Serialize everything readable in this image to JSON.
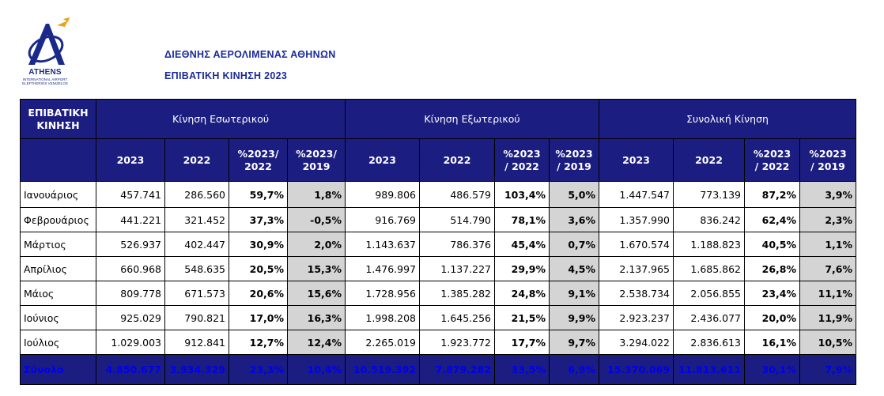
{
  "logo": {
    "brand": "ATHENS",
    "sub_line1": "INTERNATIONAL AIRPORT",
    "sub_line2": "ELEFTHERIOS VENIZELOS"
  },
  "header": {
    "title1": "ΔΙΕΘΝΗΣ ΑΕΡΟΛΙΜΕΝΑΣ ΑΘΗΝΩΝ",
    "title2": "ΕΠΙΒΑΤΙΚΗ ΚΙΝΗΣΗ 2023"
  },
  "table": {
    "corner_label_1": "ΕΠΙΒΑΤΙΚΗ",
    "corner_label_2": "ΚΙΝΗΣΗ",
    "groups": [
      "Κίνηση Εσωτερικού",
      "Κίνηση Εξωτερικού",
      "Συνολική Κίνηση"
    ],
    "subheaders": [
      [
        "2023",
        "",
        "2022",
        "",
        "%2023/",
        "2022",
        "%2023/",
        "2019"
      ],
      [
        "2023",
        "",
        "2022",
        "",
        "%2023",
        "/ 2022",
        "%2023",
        "/ 2019"
      ],
      [
        "2023",
        "",
        "2022",
        "",
        "%2023",
        "/ 2022",
        "%2023",
        "/ 2019"
      ]
    ],
    "rows": [
      {
        "month": "Ιανουάριος",
        "cells": [
          "457.741",
          "286.560",
          "59,7%",
          "1,8%",
          "989.806",
          "486.579",
          "103,4%",
          "5,0%",
          "1.447.547",
          "773.139",
          "87,2%",
          "3,9%"
        ]
      },
      {
        "month": "Φεβρουάριος",
        "cells": [
          "441.221",
          "321.452",
          "37,3%",
          "-0,5%",
          "916.769",
          "514.790",
          "78,1%",
          "3,6%",
          "1.357.990",
          "836.242",
          "62,4%",
          "2,3%"
        ]
      },
      {
        "month": "Μάρτιος",
        "cells": [
          "526.937",
          "402.447",
          "30,9%",
          "2,0%",
          "1.143.637",
          "786.376",
          "45,4%",
          "0,7%",
          "1.670.574",
          "1.188.823",
          "40,5%",
          "1,1%"
        ]
      },
      {
        "month": "Απρίλιος",
        "cells": [
          "660.968",
          "548.635",
          "20,5%",
          "15,3%",
          "1.476.997",
          "1.137.227",
          "29,9%",
          "4,5%",
          "2.137.965",
          "1.685.862",
          "26,8%",
          "7,6%"
        ]
      },
      {
        "month": "Μάιος",
        "cells": [
          "809.778",
          "671.573",
          "20,6%",
          "15,6%",
          "1.728.956",
          "1.385.282",
          "24,8%",
          "9,1%",
          "2.538.734",
          "2.056.855",
          "23,4%",
          "11,1%"
        ]
      },
      {
        "month": "Ιούνιος",
        "cells": [
          "925.029",
          "790.821",
          "17,0%",
          "16,3%",
          "1.998.208",
          "1.645.256",
          "21,5%",
          "9,9%",
          "2.923.237",
          "2.436.077",
          "20,0%",
          "11,9%"
        ]
      },
      {
        "month": "Ιούλιος",
        "cells": [
          "1.029.003",
          "912.841",
          "12,7%",
          "12,4%",
          "2.265.019",
          "1.923.772",
          "17,7%",
          "9,7%",
          "3.294.022",
          "2.836.613",
          "16,1%",
          "10,5%"
        ]
      }
    ],
    "total": {
      "label": "Σύνολο",
      "cells": [
        "4.850.677",
        "3.934.329",
        "23,3%",
        "10,4%",
        "10.519.392",
        "7.879.282",
        "33,5%",
        "6,9%",
        "15.370.069",
        "11.813.611",
        "30,1%",
        "7,9%"
      ]
    },
    "colors": {
      "header_bg": "#1c1d80",
      "header_text": "#ffffff",
      "total_text": "#0000ee",
      "shade": "#d4d4d4",
      "title": "#1a2a9a"
    }
  }
}
